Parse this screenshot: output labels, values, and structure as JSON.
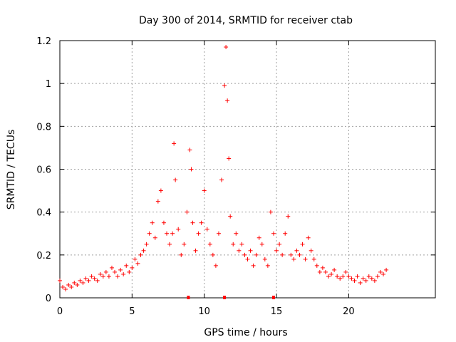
{
  "chart_data": {
    "type": "scatter",
    "title": "Day 300 of 2014, SRMTID for receiver ctab",
    "xlabel": "GPS time / hours",
    "ylabel": "SRMTID / TECUs",
    "xlim": [
      0,
      26
    ],
    "ylim": [
      0,
      1.2
    ],
    "xticks": [
      0,
      5,
      10,
      15,
      20
    ],
    "xtick_labels": [
      "0",
      "5",
      "10",
      "15",
      "20"
    ],
    "yticks": [
      0,
      0.2,
      0.4,
      0.6,
      0.8,
      1,
      1.2
    ],
    "ytick_labels": [
      "0",
      "0.2",
      "0.4",
      "0.6",
      "0.8",
      "1",
      "1.2"
    ],
    "grid": true,
    "marker": "plus",
    "color": "#ff0000",
    "series": [
      {
        "name": "SRMTID",
        "x": [
          0.0,
          0.2,
          0.4,
          0.6,
          0.8,
          1.0,
          1.2,
          1.4,
          1.6,
          1.8,
          2.0,
          2.2,
          2.4,
          2.6,
          2.8,
          3.0,
          3.2,
          3.4,
          3.6,
          3.8,
          4.0,
          4.2,
          4.4,
          4.6,
          4.8,
          5.0,
          5.2,
          5.4,
          5.6,
          5.8,
          6.0,
          6.2,
          6.4,
          6.6,
          6.8,
          7.0,
          7.2,
          7.4,
          7.6,
          7.8,
          7.9,
          8.0,
          8.2,
          8.4,
          8.6,
          8.8,
          9.0,
          9.1,
          9.2,
          9.4,
          9.6,
          9.8,
          10.0,
          10.2,
          10.4,
          10.6,
          10.8,
          11.0,
          11.2,
          11.4,
          11.5,
          11.6,
          11.7,
          11.8,
          12.0,
          12.2,
          12.4,
          12.6,
          12.8,
          13.0,
          13.2,
          13.4,
          13.6,
          13.8,
          14.0,
          14.2,
          14.4,
          14.6,
          14.8,
          15.0,
          15.2,
          15.4,
          15.6,
          15.8,
          16.0,
          16.2,
          16.4,
          16.6,
          16.8,
          17.0,
          17.2,
          17.4,
          17.6,
          17.8,
          18.0,
          18.2,
          18.4,
          18.6,
          18.8,
          19.0,
          19.2,
          19.4,
          19.6,
          19.8,
          20.0,
          20.2,
          20.4,
          20.6,
          20.8,
          21.0,
          21.2,
          21.4,
          21.6,
          21.8,
          22.0,
          22.2,
          22.4,
          22.6
        ],
        "y": [
          0.08,
          0.05,
          0.04,
          0.06,
          0.05,
          0.07,
          0.06,
          0.08,
          0.07,
          0.09,
          0.08,
          0.1,
          0.09,
          0.08,
          0.11,
          0.1,
          0.12,
          0.1,
          0.14,
          0.12,
          0.1,
          0.13,
          0.11,
          0.15,
          0.12,
          0.14,
          0.18,
          0.16,
          0.2,
          0.22,
          0.25,
          0.3,
          0.35,
          0.28,
          0.45,
          0.5,
          0.35,
          0.3,
          0.25,
          0.3,
          0.72,
          0.55,
          0.32,
          0.2,
          0.25,
          0.4,
          0.69,
          0.6,
          0.35,
          0.22,
          0.3,
          0.35,
          0.5,
          0.32,
          0.25,
          0.2,
          0.15,
          0.3,
          0.55,
          0.99,
          1.17,
          0.92,
          0.65,
          0.38,
          0.25,
          0.3,
          0.22,
          0.25,
          0.2,
          0.18,
          0.22,
          0.15,
          0.2,
          0.28,
          0.25,
          0.18,
          0.15,
          0.4,
          0.3,
          0.22,
          0.25,
          0.2,
          0.3,
          0.38,
          0.2,
          0.18,
          0.22,
          0.2,
          0.25,
          0.18,
          0.28,
          0.22,
          0.18,
          0.15,
          0.12,
          0.14,
          0.12,
          0.1,
          0.11,
          0.13,
          0.1,
          0.09,
          0.1,
          0.12,
          0.1,
          0.09,
          0.08,
          0.1,
          0.07,
          0.09,
          0.08,
          0.1,
          0.09,
          0.08,
          0.1,
          0.12,
          0.11,
          0.13
        ]
      }
    ],
    "rug_x": [
      8.9,
      11.4,
      14.8
    ]
  }
}
